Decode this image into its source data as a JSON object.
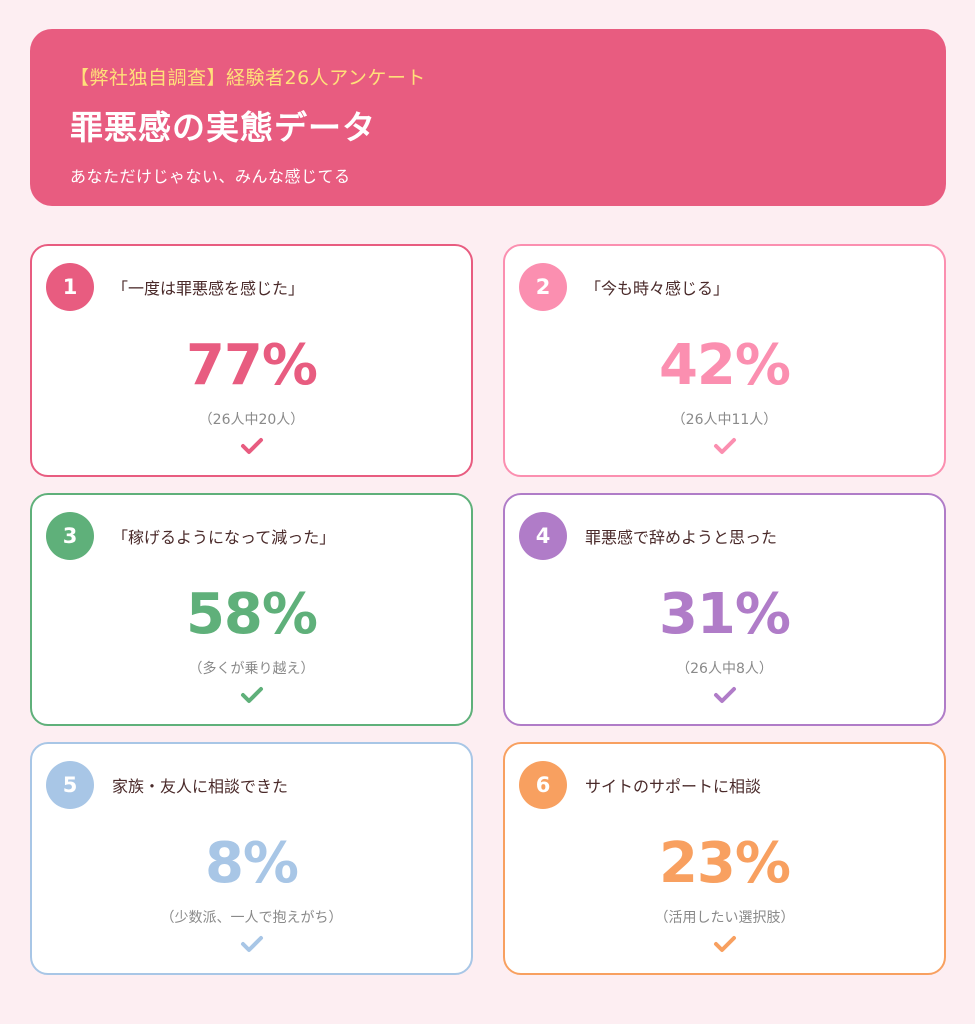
{
  "header": {
    "eyebrow": "【弊社独自調査】経験者26人アンケート",
    "title": "罪悪感の実態データ",
    "subtitle": "あなただけじゃない、みんな感じてる",
    "bg_color": "#e85c80"
  },
  "cards": [
    {
      "number": "1",
      "label": "「一度は罪悪感を感じた」",
      "percent": "77%",
      "note": "（26人中20人）",
      "color": "#e85c80",
      "icon": "check-icon"
    },
    {
      "number": "2",
      "label": "「今も時々感じる」",
      "percent": "42%",
      "note": "（26人中11人）",
      "color": "#fb8fb0",
      "icon": "check-icon"
    },
    {
      "number": "3",
      "label": "「稼げるようになって減った」",
      "percent": "58%",
      "note": "（多くが乗り越え）",
      "color": "#5fb07a",
      "icon": "check-icon"
    },
    {
      "number": "4",
      "label": "罪悪感で辞めようと思った",
      "percent": "31%",
      "note": "（26人中8人）",
      "color": "#b07cc8",
      "icon": "check-icon"
    },
    {
      "number": "5",
      "label": "家族・友人に相談できた",
      "percent": "8%",
      "note": "（少数派、一人で抱えがち）",
      "color": "#a8c6e6",
      "icon": "check-icon"
    },
    {
      "number": "6",
      "label": "サイトのサポートに相談",
      "percent": "23%",
      "note": "（活用したい選択肢）",
      "color": "#f8a060",
      "icon": "check-icon"
    }
  ]
}
